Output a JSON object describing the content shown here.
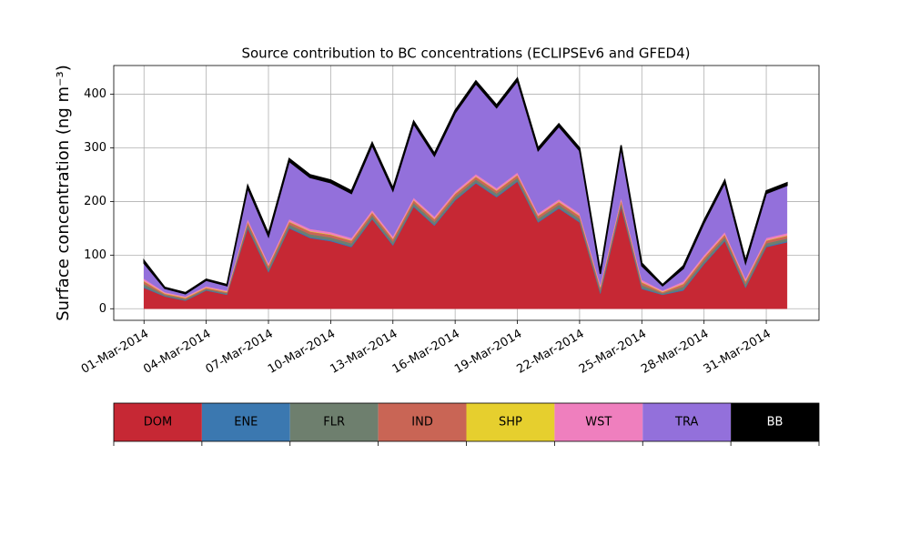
{
  "chart_data": {
    "type": "stacked_area",
    "title": "Source contribution to BC concentrations (ECLIPSEv6 and GFED4)",
    "y_label": "Surface concentration (ng m⁻³)",
    "x": [
      "2014-03-01",
      "2014-03-02",
      "2014-03-03",
      "2014-03-04",
      "2014-03-05",
      "2014-03-06",
      "2014-03-07",
      "2014-03-08",
      "2014-03-09",
      "2014-03-10",
      "2014-03-11",
      "2014-03-12",
      "2014-03-13",
      "2014-03-14",
      "2014-03-15",
      "2014-03-16",
      "2014-03-17",
      "2014-03-18",
      "2014-03-19",
      "2014-03-20",
      "2014-03-21",
      "2014-03-22",
      "2014-03-23",
      "2014-03-24",
      "2014-03-25",
      "2014-03-26",
      "2014-03-27",
      "2014-03-28",
      "2014-03-29",
      "2014-03-30",
      "2014-03-31",
      "2014-04-01"
    ],
    "series": [
      {
        "name": "DOM",
        "color": "#c62834",
        "values": [
          39,
          23,
          15,
          34,
          26,
          150,
          68,
          150,
          132,
          126,
          115,
          167,
          118,
          190,
          155,
          202,
          234,
          208,
          237,
          161,
          187,
          161,
          28,
          190,
          37,
          26,
          34,
          83,
          126,
          39,
          115,
          124
        ]
      },
      {
        "name": "ENE",
        "color": "#3b78b0",
        "values": [
          2,
          1,
          1,
          1,
          1,
          2,
          2,
          2,
          2,
          2,
          2,
          2,
          2,
          2,
          2,
          2,
          2,
          2,
          2,
          2,
          2,
          2,
          2,
          2,
          2,
          1,
          2,
          2,
          2,
          2,
          2,
          2
        ]
      },
      {
        "name": "FLR",
        "color": "#6e7f6e",
        "values": [
          5,
          2,
          2,
          2,
          2,
          5,
          5,
          5,
          5,
          5,
          5,
          5,
          5,
          5,
          5,
          5,
          5,
          5,
          5,
          5,
          5,
          5,
          5,
          5,
          5,
          2,
          5,
          5,
          5,
          5,
          5,
          5
        ]
      },
      {
        "name": "IND",
        "color": "#c96555",
        "values": [
          5,
          2,
          2,
          2,
          2,
          5,
          5,
          5,
          5,
          5,
          5,
          5,
          5,
          5,
          5,
          5,
          5,
          5,
          5,
          5,
          5,
          5,
          5,
          5,
          5,
          2,
          5,
          5,
          5,
          5,
          5,
          5
        ]
      },
      {
        "name": "SHP",
        "color": "#e6cf2e",
        "values": [
          1,
          1,
          1,
          1,
          1,
          1,
          1,
          1,
          1,
          1,
          1,
          1,
          1,
          1,
          1,
          1,
          1,
          1,
          1,
          1,
          1,
          1,
          1,
          1,
          1,
          1,
          1,
          1,
          1,
          1,
          1,
          1
        ]
      },
      {
        "name": "WST",
        "color": "#ef7fbe",
        "values": [
          4,
          2,
          2,
          2,
          2,
          4,
          4,
          4,
          4,
          4,
          4,
          4,
          4,
          4,
          4,
          4,
          4,
          4,
          4,
          4,
          4,
          4,
          4,
          4,
          4,
          2,
          4,
          4,
          4,
          4,
          4,
          4
        ]
      },
      {
        "name": "TRA",
        "color": "#9370db",
        "values": [
          29,
          7,
          5,
          11,
          9,
          58,
          50,
          108,
          96,
          92,
          83,
          121,
          85,
          138,
          113,
          146,
          169,
          150,
          171,
          117,
          136,
          117,
          20,
          93,
          26,
          9,
          24,
          60,
          92,
          29,
          83,
          89
        ]
      },
      {
        "name": "BB",
        "color": "#000000",
        "values": [
          5,
          2,
          2,
          2,
          2,
          5,
          5,
          5,
          5,
          5,
          5,
          5,
          5,
          5,
          5,
          5,
          5,
          5,
          5,
          5,
          5,
          5,
          5,
          5,
          5,
          2,
          5,
          5,
          5,
          5,
          5,
          5
        ]
      }
    ],
    "xlim": [
      "2014-02-27T13:00",
      "2014-04-02T13:00"
    ],
    "xticks": [
      {
        "value": "2014-03-01",
        "label": "01-Mar-2014"
      },
      {
        "value": "2014-03-04",
        "label": "04-Mar-2014"
      },
      {
        "value": "2014-03-07",
        "label": "07-Mar-2014"
      },
      {
        "value": "2014-03-10",
        "label": "10-Mar-2014"
      },
      {
        "value": "2014-03-13",
        "label": "13-Mar-2014"
      },
      {
        "value": "2014-03-16",
        "label": "16-Mar-2014"
      },
      {
        "value": "2014-03-19",
        "label": "19-Mar-2014"
      },
      {
        "value": "2014-03-22",
        "label": "22-Mar-2014"
      },
      {
        "value": "2014-03-25",
        "label": "25-Mar-2014"
      },
      {
        "value": "2014-03-28",
        "label": "28-Mar-2014"
      },
      {
        "value": "2014-03-31",
        "label": "31-Mar-2014"
      }
    ],
    "ylim": [
      -21.6,
      453.6
    ],
    "yticks": [
      0,
      100,
      200,
      300,
      400
    ],
    "grid": true,
    "legend": "bottom"
  }
}
